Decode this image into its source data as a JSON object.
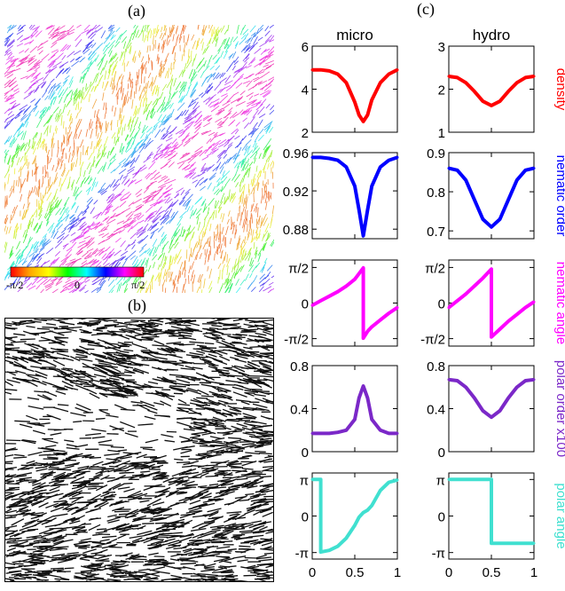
{
  "panel_labels": {
    "a": "(a)",
    "b": "(b)",
    "c": "(c)"
  },
  "colorbar": {
    "min_label": "-π/2",
    "mid_label": "0",
    "max_label": "π/2",
    "colors": [
      "#ff0000",
      "#ffa500",
      "#ffff00",
      "#00ff00",
      "#00ffff",
      "#0000ff",
      "#ff00ff",
      "#ff0000"
    ]
  },
  "chart_data": {
    "type": "line",
    "columns": [
      "micro",
      "hydro"
    ],
    "xlim": [
      0,
      1
    ],
    "xticks": [
      0,
      0.5,
      1
    ],
    "xtick_labels": [
      "0",
      "0.5",
      "1"
    ],
    "rows": [
      {
        "name": "density",
        "color": "#ff0000",
        "micro": {
          "ylim": [
            2,
            6
          ],
          "yticks": [
            2,
            4,
            6
          ],
          "ytick_labels": [
            "2",
            "4",
            "6"
          ],
          "x": [
            0,
            0.1,
            0.2,
            0.3,
            0.4,
            0.5,
            0.55,
            0.6,
            0.65,
            0.7,
            0.8,
            0.9,
            1.0
          ],
          "y": [
            4.9,
            4.9,
            4.85,
            4.7,
            4.3,
            3.4,
            2.8,
            2.5,
            2.8,
            3.5,
            4.3,
            4.7,
            4.9
          ]
        },
        "hydro": {
          "ylim": [
            1,
            3
          ],
          "yticks": [
            1,
            2,
            3
          ],
          "ytick_labels": [
            "1",
            "2",
            "3"
          ],
          "x": [
            0,
            0.1,
            0.2,
            0.3,
            0.4,
            0.5,
            0.6,
            0.7,
            0.8,
            0.9,
            1.0
          ],
          "y": [
            2.3,
            2.27,
            2.15,
            1.95,
            1.72,
            1.62,
            1.72,
            1.95,
            2.15,
            2.27,
            2.3
          ]
        }
      },
      {
        "name": "nematic order",
        "color": "#0000ff",
        "micro": {
          "ylim": [
            0.87,
            0.96
          ],
          "yticks": [
            0.88,
            0.92,
            0.96
          ],
          "ytick_labels": [
            "0.88",
            "0.92",
            "0.96"
          ],
          "x": [
            0,
            0.1,
            0.2,
            0.3,
            0.4,
            0.5,
            0.55,
            0.6,
            0.65,
            0.7,
            0.8,
            0.9,
            1.0
          ],
          "y": [
            0.955,
            0.955,
            0.954,
            0.952,
            0.945,
            0.925,
            0.9,
            0.873,
            0.9,
            0.925,
            0.945,
            0.952,
            0.955
          ]
        },
        "hydro": {
          "ylim": [
            0.68,
            0.9
          ],
          "yticks": [
            0.7,
            0.8,
            0.9
          ],
          "ytick_labels": [
            "0.7",
            "0.8",
            "0.9"
          ],
          "x": [
            0,
            0.1,
            0.2,
            0.3,
            0.4,
            0.5,
            0.6,
            0.7,
            0.8,
            0.9,
            1.0
          ],
          "y": [
            0.86,
            0.855,
            0.83,
            0.78,
            0.73,
            0.71,
            0.73,
            0.78,
            0.83,
            0.855,
            0.86
          ]
        }
      },
      {
        "name": "nematic angle",
        "color": "#ff00ff",
        "micro": {
          "ylim": [
            -1.9,
            1.9
          ],
          "yticks": [
            -1.5708,
            0,
            1.5708
          ],
          "ytick_labels": [
            "-π/2",
            "0",
            "π/2"
          ],
          "x": [
            0,
            0.1,
            0.2,
            0.3,
            0.4,
            0.5,
            0.55,
            0.6,
            0.6,
            0.65,
            0.7,
            0.8,
            0.9,
            1.0
          ],
          "y": [
            -0.1,
            0.1,
            0.3,
            0.5,
            0.75,
            1.05,
            1.3,
            1.55,
            -1.55,
            -1.25,
            -1.05,
            -0.75,
            -0.45,
            -0.2
          ]
        },
        "hydro": {
          "ylim": [
            -1.9,
            1.9
          ],
          "yticks": [
            -1.5708,
            0,
            1.5708
          ],
          "ytick_labels": [
            "-π/2",
            "0",
            "π/2"
          ],
          "x": [
            0,
            0.1,
            0.2,
            0.3,
            0.4,
            0.5,
            0.5,
            0.6,
            0.7,
            0.8,
            0.9,
            1.0
          ],
          "y": [
            -0.2,
            0.1,
            0.4,
            0.75,
            1.1,
            1.5,
            -1.5,
            -1.15,
            -0.8,
            -0.5,
            -0.2,
            0.05
          ]
        }
      },
      {
        "name": "polar order x100",
        "color": "#7b28c8",
        "micro": {
          "ylim": [
            0,
            0.8
          ],
          "yticks": [
            0,
            0.4,
            0.8
          ],
          "ytick_labels": [
            "0",
            "0.4",
            "0.8"
          ],
          "x": [
            0,
            0.1,
            0.2,
            0.3,
            0.4,
            0.5,
            0.55,
            0.6,
            0.65,
            0.7,
            0.8,
            0.9,
            1.0
          ],
          "y": [
            0.17,
            0.17,
            0.17,
            0.18,
            0.2,
            0.3,
            0.5,
            0.61,
            0.5,
            0.3,
            0.2,
            0.17,
            0.17
          ]
        },
        "hydro": {
          "ylim": [
            0,
            0.8
          ],
          "yticks": [
            0,
            0.4,
            0.8
          ],
          "ytick_labels": [
            "0",
            "0.4",
            "0.8"
          ],
          "x": [
            0,
            0.1,
            0.2,
            0.3,
            0.4,
            0.5,
            0.6,
            0.7,
            0.8,
            0.9,
            1.0
          ],
          "y": [
            0.67,
            0.66,
            0.6,
            0.5,
            0.38,
            0.32,
            0.38,
            0.5,
            0.6,
            0.66,
            0.67
          ]
        }
      },
      {
        "name": "polar angle",
        "color": "#40e0d0",
        "micro": {
          "ylim": [
            -3.7,
            3.7
          ],
          "yticks": [
            -3.14159,
            0,
            3.14159
          ],
          "ytick_labels": [
            "-π",
            "0",
            "π"
          ],
          "x": [
            0,
            0.1,
            0.1,
            0.2,
            0.3,
            0.4,
            0.5,
            0.55,
            0.6,
            0.65,
            0.7,
            0.8,
            0.9,
            1.0
          ],
          "y": [
            3.14,
            3.14,
            -3.1,
            -2.95,
            -2.6,
            -1.9,
            -0.8,
            -0.1,
            0.3,
            0.5,
            0.9,
            2.2,
            2.9,
            3.1
          ]
        },
        "hydro": {
          "ylim": [
            -3.7,
            3.7
          ],
          "yticks": [
            -3.14159,
            0,
            3.14159
          ],
          "ytick_labels": [
            "-π",
            "0",
            "π"
          ],
          "x": [
            0,
            0.1,
            0.2,
            0.3,
            0.4,
            0.5,
            0.5,
            0.6,
            0.7,
            0.8,
            0.9,
            1.0
          ],
          "y": [
            3.14,
            3.14,
            3.14,
            3.14,
            3.14,
            3.14,
            -2.35,
            -2.35,
            -2.35,
            -2.35,
            -2.35,
            -2.35
          ]
        }
      }
    ]
  }
}
